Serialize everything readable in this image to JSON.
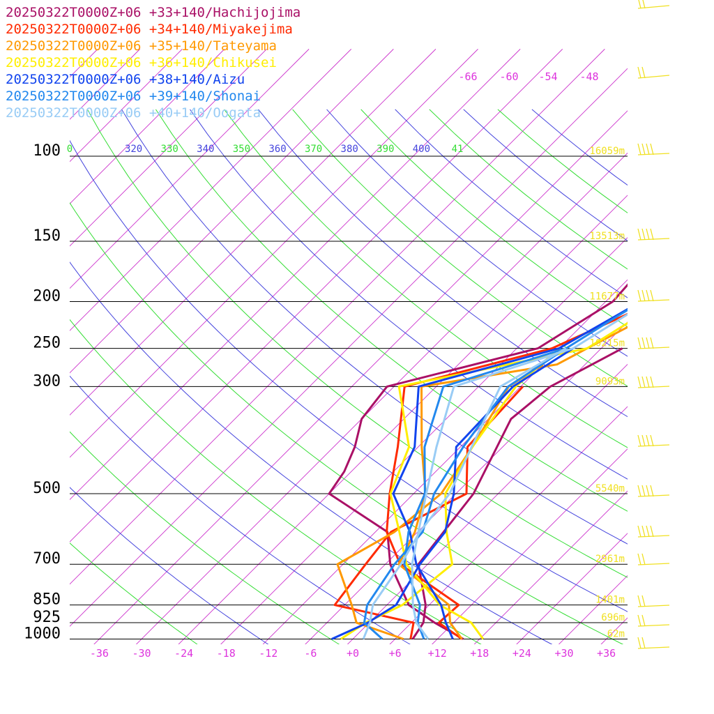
{
  "chart_data": {
    "type": "line",
    "title": "",
    "xlabel": "",
    "ylabel": "",
    "x_axis": {
      "ticks": [
        "-36",
        "-30",
        "-24",
        "-18",
        "-12",
        "-6",
        "+0",
        "+6",
        "+12",
        "+18",
        "+24",
        "+30",
        "+36"
      ],
      "range": [
        -40,
        40
      ]
    },
    "y_axis": {
      "ticks": [
        "100",
        "150",
        "200",
        "250",
        "300",
        "500",
        "700",
        "850",
        "925",
        "1000"
      ],
      "scale": "log-pressure",
      "range": [
        1000,
        100
      ]
    },
    "isotherm_upper_labels": [
      "-66",
      "-60",
      "-54",
      "-48"
    ],
    "theta_labels": [
      {
        "text": "0",
        "color": "#33dd33"
      },
      {
        "text": "320",
        "color": "#4444dd"
      },
      {
        "text": "330",
        "color": "#33dd33"
      },
      {
        "text": "340",
        "color": "#4444dd"
      },
      {
        "text": "350",
        "color": "#33dd33"
      },
      {
        "text": "360",
        "color": "#4444dd"
      },
      {
        "text": "370",
        "color": "#33dd33"
      },
      {
        "text": "380",
        "color": "#4444dd"
      },
      {
        "text": "390",
        "color": "#33dd33"
      },
      {
        "text": "400",
        "color": "#4444dd"
      },
      {
        "text": "41",
        "color": "#33dd33"
      }
    ],
    "height_labels": [
      {
        "p": 100,
        "text": "16059m"
      },
      {
        "p": 150,
        "text": "13513m"
      },
      {
        "p": 200,
        "text": "11677m"
      },
      {
        "p": 250,
        "text": "10215m"
      },
      {
        "p": 300,
        "text": "9093m"
      },
      {
        "p": 500,
        "text": "5540m"
      },
      {
        "p": 700,
        "text": "2961m"
      },
      {
        "p": 850,
        "text": "1401m"
      },
      {
        "p": 925,
        "text": "696m"
      },
      {
        "p": 1000,
        "text": "62m"
      }
    ],
    "series": [
      {
        "name": "20250322T0000Z+06 +33+140/Hachijojima",
        "color": "#aa1066",
        "temp": [
          [
            1000,
            15.7
          ],
          [
            925,
            9.3
          ],
          [
            850,
            3.1
          ],
          [
            700,
            -5.3
          ],
          [
            600,
            -10.3
          ],
          [
            500,
            -24
          ],
          [
            450,
            -25
          ],
          [
            400,
            -27
          ],
          [
            350,
            -30
          ],
          [
            300,
            -31
          ],
          [
            250,
            -15
          ],
          [
            200,
            -11
          ],
          [
            150,
            -12
          ],
          [
            125,
            -12
          ],
          [
            100,
            -5
          ],
          [
            95,
            -4
          ],
          [
            80,
            -2
          ]
        ],
        "dew": [
          [
            1000,
            8.5
          ],
          [
            925,
            7.7
          ],
          [
            850,
            5.5
          ],
          [
            700,
            -1.3
          ],
          [
            500,
            -3.5
          ],
          [
            350,
            -8.8
          ],
          [
            300,
            -7.8
          ],
          [
            250,
            -3
          ]
        ]
      },
      {
        "name": "20250322T0000Z+06 +34+140/Miyakejima",
        "color": "#ff2a00",
        "temp": [
          [
            1000,
            15.5
          ],
          [
            925,
            9.9
          ],
          [
            850,
            10.2
          ],
          [
            700,
            -3.9
          ],
          [
            600,
            -10.4
          ],
          [
            500,
            -15.4
          ],
          [
            400,
            -20.9
          ],
          [
            300,
            -28.5
          ],
          [
            250,
            -13
          ],
          [
            200,
            -5
          ],
          [
            150,
            -8
          ],
          [
            100,
            -1
          ],
          [
            85,
            3
          ]
        ],
        "dew": [
          [
            1000,
            8.2
          ],
          [
            925,
            6.3
          ],
          [
            850,
            -7.4
          ],
          [
            700,
            -8.8
          ],
          [
            600,
            -9.8
          ],
          [
            500,
            -4.5
          ],
          [
            400,
            -11
          ],
          [
            300,
            -11.7
          ]
        ]
      },
      {
        "name": "20250322T0000Z+06 +35+140/Tateyama",
        "color": "#ff9900",
        "temp": [
          [
            1000,
            15.5
          ],
          [
            925,
            11.5
          ],
          [
            850,
            8.8
          ],
          [
            700,
            -4.1
          ],
          [
            600,
            -6.4
          ],
          [
            500,
            -10.3
          ],
          [
            400,
            -17.5
          ],
          [
            300,
            -26.1
          ],
          [
            270,
            -10
          ],
          [
            250,
            -8
          ],
          [
            200,
            -2
          ],
          [
            170,
            -4
          ],
          [
            150,
            -7
          ],
          [
            100,
            2
          ]
        ],
        "dew": [
          [
            1000,
            7.2
          ],
          [
            925,
            -1.8
          ],
          [
            850,
            -5
          ],
          [
            700,
            -12.8
          ],
          [
            600,
            -9.3
          ],
          [
            500,
            -8.1
          ],
          [
            400,
            -10.3
          ],
          [
            300,
            -13.7
          ],
          [
            270,
            -12
          ]
        ]
      },
      {
        "name": "20250322T0000Z+06 +36+140/Chikusei",
        "color": "#ffee00",
        "temp": [
          [
            1000,
            18.5
          ],
          [
            925,
            14.5
          ],
          [
            850,
            7.5
          ],
          [
            700,
            -3
          ],
          [
            600,
            -8.6
          ],
          [
            500,
            -15.3
          ],
          [
            400,
            -19.3
          ],
          [
            300,
            -29.3
          ],
          [
            250,
            -8
          ],
          [
            200,
            -4
          ],
          [
            150,
            -7
          ],
          [
            100,
            1
          ]
        ],
        "dew": [
          [
            1000,
            -1.7
          ],
          [
            925,
            -0.5
          ],
          [
            850,
            2.2
          ],
          [
            700,
            3.5
          ],
          [
            600,
            -1.9
          ],
          [
            500,
            -7.5
          ],
          [
            400,
            -10.3
          ],
          [
            300,
            -12.7
          ],
          [
            250,
            -12
          ]
        ]
      },
      {
        "name": "20250322T0000Z+06 +38+140/Aizu",
        "color": "#1144ee",
        "temp": [
          [
            1000,
            14.2
          ],
          [
            925,
            10.9
          ],
          [
            850,
            7.7
          ],
          [
            700,
            -1.6
          ],
          [
            600,
            -7.1
          ],
          [
            500,
            -14.9
          ],
          [
            400,
            -18.5
          ],
          [
            300,
            -26.5
          ],
          [
            250,
            -12
          ],
          [
            200,
            -7
          ],
          [
            150,
            -6
          ],
          [
            100,
            -1
          ],
          [
            80,
            6
          ]
        ],
        "dew": [
          [
            1000,
            -3
          ],
          [
            925,
            -0.2
          ],
          [
            850,
            1.3
          ],
          [
            700,
            -1.1
          ],
          [
            600,
            -2.1
          ],
          [
            500,
            -6.3
          ],
          [
            400,
            -12.6
          ],
          [
            300,
            -13.1
          ],
          [
            250,
            -10
          ]
        ]
      },
      {
        "name": "20250322T0000Z+06 +39+140/Shonai",
        "color": "#2288ee",
        "temp": [
          [
            1000,
            10.1
          ],
          [
            925,
            6.9
          ],
          [
            850,
            4.7
          ],
          [
            700,
            -3.3
          ],
          [
            600,
            -7.3
          ],
          [
            500,
            -10.4
          ],
          [
            400,
            -17.1
          ],
          [
            300,
            -23
          ],
          [
            250,
            -11
          ],
          [
            200,
            -7
          ],
          [
            150,
            -9
          ],
          [
            100,
            -2
          ]
        ],
        "dew": [
          [
            1000,
            4.2
          ],
          [
            925,
            -0.7
          ],
          [
            850,
            -2.8
          ],
          [
            700,
            -4.7
          ],
          [
            600,
            -5.3
          ],
          [
            500,
            -9.1
          ],
          [
            400,
            -11.6
          ],
          [
            300,
            -13.8
          ],
          [
            250,
            -11
          ]
        ]
      },
      {
        "name": "20250322T0000Z+06 +40+140/Oogata",
        "color": "#99ccf5",
        "temp": [
          [
            1000,
            10.7
          ],
          [
            925,
            6.7
          ],
          [
            850,
            3.7
          ],
          [
            700,
            -2.2
          ],
          [
            600,
            -5.9
          ],
          [
            500,
            -10.2
          ],
          [
            400,
            -15.4
          ],
          [
            300,
            -21.5
          ],
          [
            250,
            -10
          ],
          [
            200,
            -6
          ],
          [
            150,
            -8
          ],
          [
            100,
            -1
          ]
        ],
        "dew": [
          [
            1000,
            1.5
          ],
          [
            925,
            0.1
          ],
          [
            850,
            -2
          ],
          [
            700,
            -3.8
          ],
          [
            600,
            -5.7
          ],
          [
            500,
            -6.9
          ],
          [
            400,
            -10.4
          ],
          [
            300,
            -14.9
          ],
          [
            250,
            -11
          ]
        ]
      }
    ],
    "grid": true,
    "legend_placement": "top-left",
    "wind_barb_color": "#f0e020"
  }
}
